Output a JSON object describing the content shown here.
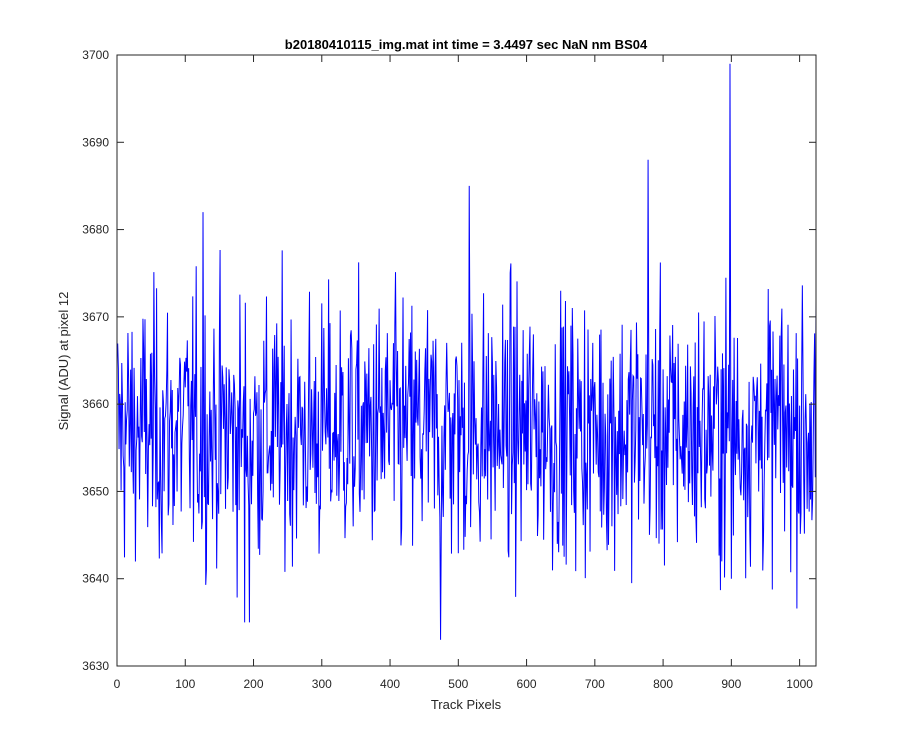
{
  "chart_data": {
    "type": "line",
    "title": "b20180410115_img.mat int time = 3.4497 sec  NaN nm BS04",
    "xlabel": "Track Pixels",
    "ylabel": "Signal (ADU) at pixel 12",
    "xlim": [
      0,
      1024
    ],
    "ylim": [
      3630,
      3700
    ],
    "xticks": [
      0,
      100,
      200,
      300,
      400,
      500,
      600,
      700,
      800,
      900,
      1000
    ],
    "yticks": [
      3630,
      3640,
      3650,
      3660,
      3670,
      3680,
      3690,
      3700
    ],
    "grid": false,
    "line_color": "#0000ff",
    "series": [
      {
        "n_points": 1024,
        "mean": 3657,
        "visual_range": [
          3633,
          3699
        ],
        "notable_points": [
          {
            "x": 125,
            "y": 3682
          },
          {
            "x": 186,
            "y": 3635
          },
          {
            "x": 193,
            "y": 3635
          },
          {
            "x": 473,
            "y": 3633
          },
          {
            "x": 515,
            "y": 3685
          },
          {
            "x": 777,
            "y": 3688
          },
          {
            "x": 897,
            "y": 3699
          },
          {
            "x": 899,
            "y": 3640
          }
        ]
      }
    ]
  }
}
